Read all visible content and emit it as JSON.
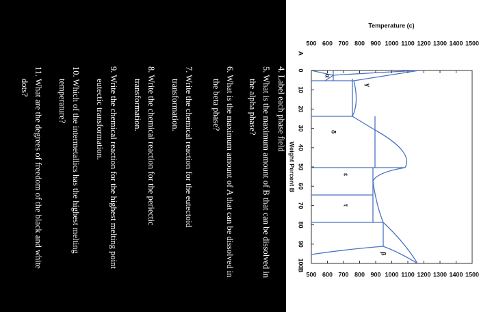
{
  "figure": {
    "y_axis_label": "Temperature (c)",
    "x_axis_label": "Weight Percent B",
    "yticks": [
      500,
      600,
      700,
      800,
      900,
      1000,
      1100,
      1200,
      1300,
      1400,
      1500
    ],
    "xticks": [
      0,
      10,
      20,
      30,
      40,
      50,
      60,
      70,
      80,
      90,
      100
    ],
    "left_component": "A",
    "right_component": "B",
    "phase_labels": [
      "γ",
      "α",
      "δ",
      "ε",
      "τ",
      "β"
    ]
  },
  "questions": [
    [
      "4. Label each phase field"
    ],
    [
      "5. What is the maximum amount of B that can be dissolved in",
      "the alpha phase?"
    ],
    [
      "6. What is the maximum amount of A that can be dissolved in",
      "the beta phase?"
    ],
    [
      "7. Write the chemical reaction for the eutectoid",
      "transformation."
    ],
    [
      "8. Write the chemical reaction for the periectic",
      "transformation."
    ],
    [
      "9. Write the chemical reaction for the highest melting point",
      "eutectic transformation."
    ],
    [
      "10. Which of the intermetallics has the highest melting",
      "temperature?"
    ],
    [
      "11. What are the degrees of freedom of the black and white",
      "dots?"
    ]
  ]
}
